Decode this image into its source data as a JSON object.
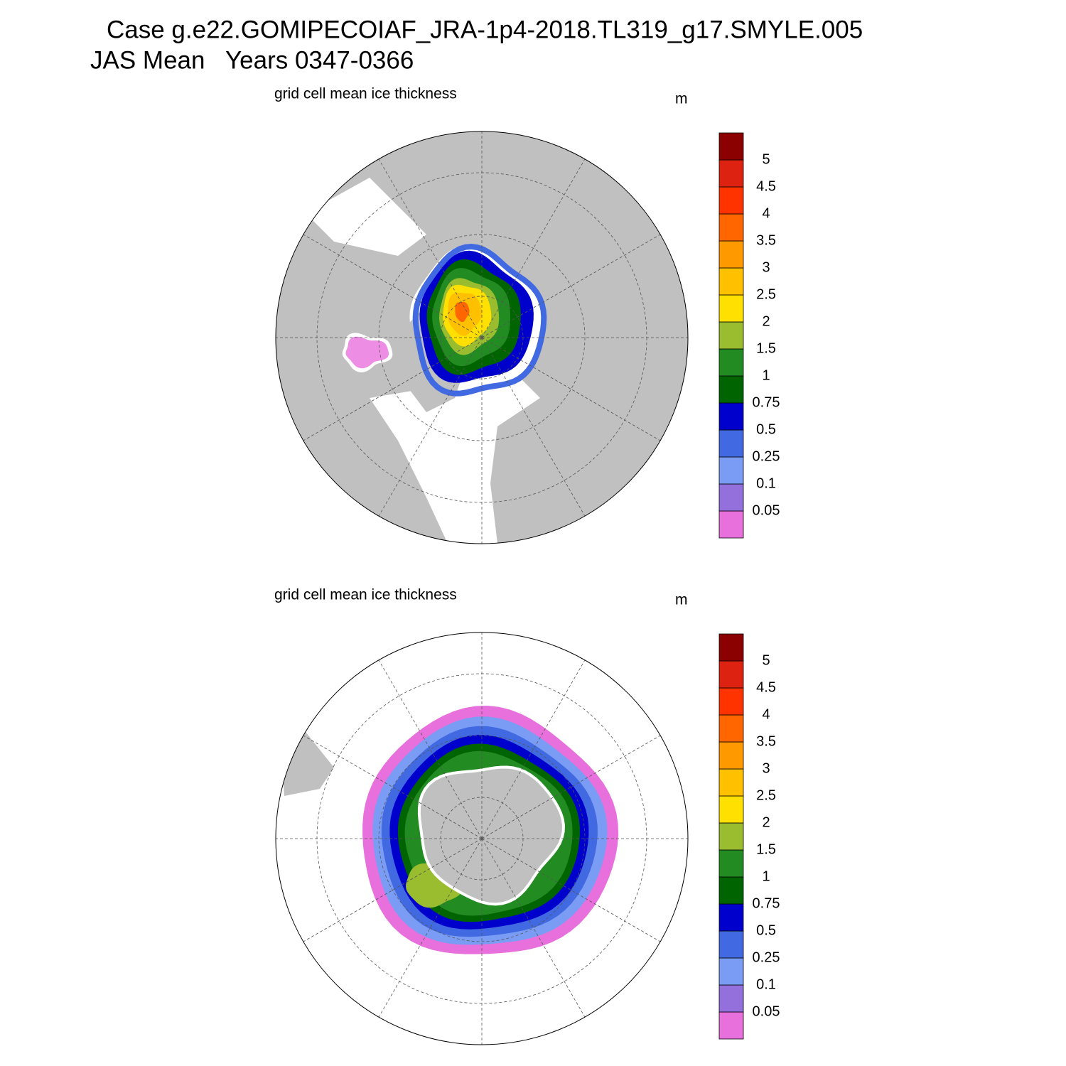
{
  "title": [
    "Case g.e22.GOMIPECOIAF_JRA-1p4-2018.TL319_g17.SMYLE.005",
    "JAS Mean   Years 0347-0366"
  ],
  "panels": [
    {
      "title": "grid cell mean ice thickness",
      "units": "m",
      "colorbar": {
        "levels": [
          0.05,
          0.1,
          0.25,
          0.5,
          0.75,
          1,
          1.5,
          2,
          2.5,
          3,
          3.5,
          4,
          4.5,
          5
        ],
        "colors": [
          "#e870dc",
          "#9370db",
          "#7a9cf4",
          "#4169e1",
          "#0000cd",
          "#006400",
          "#228b22",
          "#9abd30",
          "#ffe000",
          "#ffc000",
          "#ff9900",
          "#ff6600",
          "#ff3300",
          "#dd2211",
          "#8b0000"
        ]
      }
    },
    {
      "title": "grid cell mean ice thickness",
      "units": "m",
      "colorbar": {
        "levels": [
          0.05,
          0.1,
          0.25,
          0.5,
          0.75,
          1,
          1.5,
          2,
          2.5,
          3,
          3.5,
          4,
          4.5,
          5
        ],
        "colors": [
          "#e870dc",
          "#9370db",
          "#7a9cf4",
          "#4169e1",
          "#0000cd",
          "#006400",
          "#228b22",
          "#9abd30",
          "#ffe000",
          "#ffc000",
          "#ff9900",
          "#ff6600",
          "#ff3300",
          "#dd2211",
          "#8b0000"
        ]
      }
    }
  ]
}
